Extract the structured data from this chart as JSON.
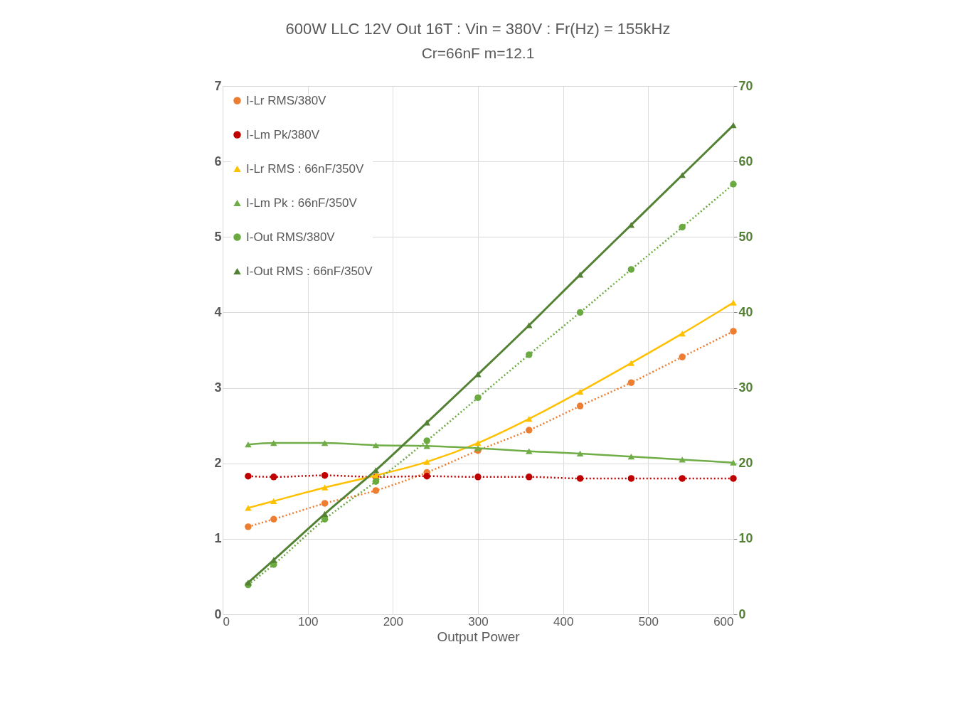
{
  "chart_data": {
    "type": "line",
    "title": "600W LLC 12V Out  16T :  Vin = 380V :  Fr(Hz) = 155kHz",
    "subtitle": "Cr=66nF  m=12.1",
    "xlabel": "Output Power",
    "x": [
      30,
      60,
      120,
      180,
      240,
      300,
      360,
      420,
      480,
      540,
      600
    ],
    "xlim": [
      0,
      600
    ],
    "xticks": [
      0,
      100,
      200,
      300,
      400,
      500,
      600
    ],
    "ylim": [
      0,
      7
    ],
    "yticks": [
      0,
      1,
      2,
      3,
      4,
      5,
      6,
      7
    ],
    "y2lim": [
      0,
      70
    ],
    "y2ticks": [
      0,
      10,
      20,
      30,
      40,
      50,
      60,
      70
    ],
    "grid": true,
    "legend": "top left",
    "series": [
      {
        "name": "I-Lr RMS/380V",
        "color": "#ed7d31",
        "marker": "circle",
        "line_style": "dotted",
        "values": [
          1.16,
          1.26,
          1.47,
          1.64,
          1.88,
          2.17,
          2.44,
          2.76,
          3.07,
          3.41,
          3.75
        ]
      },
      {
        "name": "I-Lm Pk/380V",
        "color": "#c00000",
        "marker": "circle",
        "line_style": "dotted",
        "values": [
          1.83,
          1.82,
          1.84,
          1.82,
          1.83,
          1.82,
          1.82,
          1.8,
          1.8,
          1.8,
          1.8
        ]
      },
      {
        "name": "I-Lr RMS : 66nF/350V",
        "color": "#ffc000",
        "marker": "triangle",
        "line_style": "solid",
        "values": [
          1.41,
          1.5,
          1.68,
          1.84,
          2.02,
          2.27,
          2.59,
          2.95,
          3.33,
          3.72,
          4.13
        ]
      },
      {
        "name": "I-Lm Pk : 66nF/350V",
        "color": "#70ad47",
        "marker": "triangle",
        "line_style": "solid",
        "values": [
          2.25,
          2.27,
          2.27,
          2.24,
          2.23,
          2.2,
          2.16,
          2.13,
          2.09,
          2.05,
          2.01
        ]
      },
      {
        "name": "I-Out RMS/380V",
        "color": "#6aaa40",
        "marker": "circle",
        "line_style": "dotted",
        "axis": "y2",
        "values": [
          3.9,
          6.6,
          12.6,
          17.6,
          23.0,
          28.7,
          34.4,
          40.0,
          45.7,
          51.3,
          57.0
        ]
      },
      {
        "name": "I-Out RMS : 66nF/350V",
        "color": "#548235",
        "marker": "triangle",
        "line_style": "solid",
        "axis": "y2",
        "values": [
          4.2,
          7.2,
          13.3,
          19.1,
          25.4,
          31.8,
          38.3,
          45.0,
          51.6,
          58.2,
          64.8
        ]
      }
    ]
  }
}
